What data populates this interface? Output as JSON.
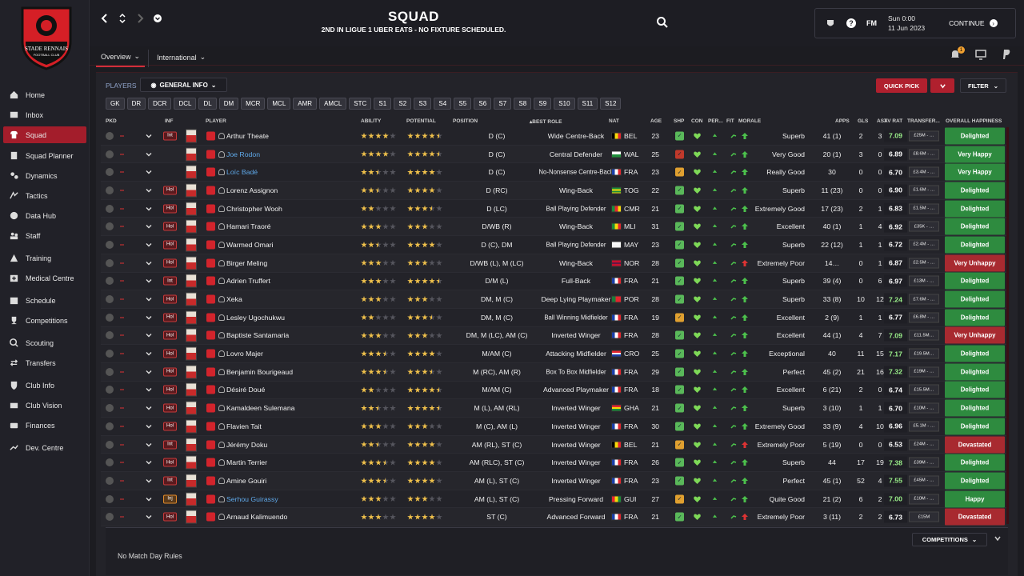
{
  "header": {
    "title": "SQUAD",
    "subtitle": "2ND IN LIGUE 1 UBER EATS - NO FIXTURE SCHEDULED.",
    "brand": "FM",
    "day_time": "Sun 0:00",
    "date": "11 Jun 2023",
    "continue_label": "CONTINUE",
    "notification_count": "1"
  },
  "club": {
    "crest_text": "STADE RENNAIS",
    "crest_sub": "FOOTBALL CLUB"
  },
  "sidebar": {
    "items": [
      {
        "label": "Home",
        "icon": "home-icon"
      },
      {
        "label": "Inbox",
        "icon": "inbox-icon"
      },
      {
        "label": "Squad",
        "icon": "shirt-icon",
        "active": true
      },
      {
        "label": "Squad Planner",
        "icon": "planner-icon"
      },
      {
        "label": "Dynamics",
        "icon": "dynamics-icon"
      },
      {
        "label": "Tactics",
        "icon": "tactics-icon"
      },
      {
        "label": "Data Hub",
        "icon": "data-hub-icon"
      },
      {
        "label": "Staff",
        "icon": "staff-icon"
      },
      {
        "label": "Training",
        "icon": "training-icon"
      },
      {
        "label": "Medical Centre",
        "icon": "medical-icon"
      },
      {
        "label": "Schedule",
        "icon": "calendar-icon"
      },
      {
        "label": "Competitions",
        "icon": "trophy-icon"
      },
      {
        "label": "Scouting",
        "icon": "search-icon"
      },
      {
        "label": "Transfers",
        "icon": "transfers-icon"
      },
      {
        "label": "Club Info",
        "icon": "shield-icon"
      },
      {
        "label": "Club Vision",
        "icon": "vision-icon"
      },
      {
        "label": "Finances",
        "icon": "finances-icon"
      },
      {
        "label": "Dev. Centre",
        "icon": "dev-centre-icon"
      }
    ]
  },
  "tabs": [
    {
      "label": "Overview"
    },
    {
      "label": "International"
    }
  ],
  "toolbar": {
    "players_label": "PLAYERS",
    "view_label": "GENERAL INFO",
    "quick_pick": "QUICK PICK",
    "filter": "FILTER"
  },
  "position_filters": [
    "GK",
    "DR",
    "DCR",
    "DCL",
    "DL",
    "DM",
    "MCR",
    "MCL",
    "AMR",
    "AMCL",
    "STC",
    "S1",
    "S2",
    "S3",
    "S4",
    "S5",
    "S6",
    "S7",
    "S8",
    "S9",
    "S10",
    "S11",
    "S12"
  ],
  "columns": {
    "pkd": "PKD",
    "inf": "INF",
    "player": "PLAYER",
    "ability": "ABILITY",
    "potential": "POTENTIAL",
    "position": "POSITION",
    "best_role": "BEST ROLE",
    "nat": "NAT",
    "age": "AGE",
    "shp": "SHP",
    "con": "CON",
    "per": "PER...",
    "fit": "FIT",
    "morale": "MORALE",
    "apps": "APPS",
    "gls": "GLS",
    "ast": "AST",
    "av_rat": "AV RAT",
    "transfer": "TRANSFER...",
    "happiness": "OVERALL HAPPINESS"
  },
  "colors": {
    "accent": "#b0202e",
    "happy": "#2e8b3f",
    "unhappy": "#a82a30"
  },
  "players": [
    {
      "name": "Arthur Theate",
      "inf": "Int",
      "ability": 4,
      "potential": 4.5,
      "position": "D (C)",
      "role": "Wide Centre-Back",
      "nat": "BEL",
      "age": "23",
      "morale": "Superb",
      "apps": "41 (1)",
      "gls": "2",
      "ast": "3",
      "rating": "7.09",
      "transfer": "£25M - …",
      "happiness": "Delighted"
    },
    {
      "name": "Joe Rodon",
      "inf": "",
      "ability": 4,
      "potential": 4.5,
      "position": "D (C)",
      "role": "Central Defender",
      "nat": "WAL",
      "age": "25",
      "morale": "Very Good",
      "apps": "20 (1)",
      "gls": "3",
      "ast": "0",
      "rating": "6.89",
      "transfer": "£8.6M - …",
      "happiness": "Very Happy",
      "blue": true
    },
    {
      "name": "Loïc Badé",
      "inf": "",
      "ability": 2.5,
      "potential": 4,
      "position": "D (C)",
      "role": "No-Nonsense Centre-Back",
      "nat": "FRA",
      "age": "23",
      "morale": "Really Good",
      "apps": "30",
      "gls": "0",
      "ast": "0",
      "rating": "6.70",
      "transfer": "£3.4M - …",
      "happiness": "Very Happy",
      "blue": true
    },
    {
      "name": "Lorenz Assignon",
      "inf": "Hol",
      "ability": 2.5,
      "potential": 4,
      "position": "D (RC)",
      "role": "Wing-Back",
      "nat": "TOG",
      "age": "22",
      "morale": "Superb",
      "apps": "11 (23)",
      "gls": "0",
      "ast": "0",
      "rating": "6.90",
      "transfer": "£1.6M - …",
      "happiness": "Delighted"
    },
    {
      "name": "Christopher Wooh",
      "inf": "Hol",
      "ability": 2,
      "potential": 3.5,
      "position": "D (LC)",
      "role": "Ball Playing Defender",
      "nat": "CMR",
      "age": "21",
      "morale": "Extremely Good",
      "apps": "17 (23)",
      "gls": "2",
      "ast": "1",
      "rating": "6.83",
      "transfer": "£1.5M - …",
      "happiness": "Delighted"
    },
    {
      "name": "Hamari Traoré",
      "inf": "Hol",
      "ability": 3,
      "potential": 3,
      "position": "D/WB (R)",
      "role": "Wing-Back",
      "nat": "MLI",
      "age": "31",
      "morale": "Excellent",
      "apps": "40 (1)",
      "gls": "1",
      "ast": "4",
      "rating": "6.92",
      "transfer": "£35K - …",
      "happiness": "Delighted"
    },
    {
      "name": "Warmed Omari",
      "inf": "Hol",
      "ability": 2.5,
      "potential": 4,
      "position": "D (C), DM",
      "role": "Ball Playing Defender",
      "nat": "MAY",
      "age": "23",
      "morale": "Superb",
      "apps": "22 (12)",
      "gls": "1",
      "ast": "1",
      "rating": "6.72",
      "transfer": "£2.4M - …",
      "happiness": "Delighted"
    },
    {
      "name": "Birger Meling",
      "inf": "Hol",
      "ability": 3,
      "potential": 3,
      "position": "D/WB (L), M (LC)",
      "role": "Wing-Back",
      "nat": "NOR",
      "age": "28",
      "morale": "Extremely Poor",
      "apps": "14…",
      "gls": "0",
      "ast": "1",
      "rating": "6.87",
      "transfer": "£2.5M - …",
      "happiness": "Very Unhappy"
    },
    {
      "name": "Adrien Truffert",
      "inf": "Int",
      "ability": 3,
      "potential": 4.5,
      "position": "D/M (L)",
      "role": "Full-Back",
      "nat": "FRA",
      "age": "21",
      "morale": "Superb",
      "apps": "39 (4)",
      "gls": "0",
      "ast": "6",
      "rating": "6.97",
      "transfer": "£13M - …",
      "happiness": "Delighted"
    },
    {
      "name": "Xeka",
      "inf": "Hol",
      "ability": 3,
      "potential": 3,
      "position": "DM, M (C)",
      "role": "Deep Lying Playmaker",
      "nat": "POR",
      "age": "28",
      "morale": "Superb",
      "apps": "33 (8)",
      "gls": "10",
      "ast": "12",
      "rating": "7.24",
      "transfer": "£7.6M - …",
      "happiness": "Delighted"
    },
    {
      "name": "Lesley Ugochukwu",
      "inf": "Hol",
      "ability": 2,
      "potential": 3.5,
      "position": "DM, M (C)",
      "role": "Ball Winning Midfielder",
      "nat": "FRA",
      "age": "19",
      "morale": "Excellent",
      "apps": "2 (9)",
      "gls": "1",
      "ast": "1",
      "rating": "6.77",
      "transfer": "£6.8M - …",
      "happiness": "Delighted"
    },
    {
      "name": "Baptiste Santamaria",
      "inf": "Hol",
      "ability": 3,
      "potential": 3,
      "position": "DM, M (LC), AM (C)",
      "role": "Inverted Winger",
      "nat": "FRA",
      "age": "28",
      "morale": "Excellent",
      "apps": "44 (1)",
      "gls": "4",
      "ast": "7",
      "rating": "7.09",
      "transfer": "£11.5M…",
      "happiness": "Very Unhappy"
    },
    {
      "name": "Lovro Majer",
      "inf": "Hol",
      "ability": 3.5,
      "potential": 4,
      "position": "M/AM (C)",
      "role": "Attacking Midfielder",
      "nat": "CRO",
      "age": "25",
      "morale": "Exceptional",
      "apps": "40",
      "gls": "11",
      "ast": "15",
      "rating": "7.17",
      "transfer": "£19.5M…",
      "happiness": "Delighted"
    },
    {
      "name": "Benjamin Bourigeaud",
      "inf": "Hol",
      "ability": 3.5,
      "potential": 3.5,
      "position": "M (RC), AM (R)",
      "role": "Box To Box Midfielder",
      "nat": "FRA",
      "age": "29",
      "morale": "Perfect",
      "apps": "45 (2)",
      "gls": "21",
      "ast": "16",
      "rating": "7.32",
      "transfer": "£19M - …",
      "happiness": "Delighted"
    },
    {
      "name": "Désiré Doué",
      "inf": "Hol",
      "ability": 2,
      "potential": 4.5,
      "position": "M/AM (C)",
      "role": "Advanced Playmaker",
      "nat": "FRA",
      "age": "18",
      "morale": "Excellent",
      "apps": "6 (21)",
      "gls": "2",
      "ast": "0",
      "rating": "6.74",
      "transfer": "£15.5M…",
      "happiness": "Delighted"
    },
    {
      "name": "Kamaldeen Sulemana",
      "inf": "Hol",
      "ability": 2.5,
      "potential": 4.5,
      "position": "M (L), AM (RL)",
      "role": "Inverted Winger",
      "nat": "GHA",
      "age": "21",
      "morale": "Superb",
      "apps": "3 (10)",
      "gls": "1",
      "ast": "1",
      "rating": "6.70",
      "transfer": "£10M - …",
      "happiness": "Delighted"
    },
    {
      "name": "Flavien Tait",
      "inf": "Hol",
      "ability": 3,
      "potential": 3,
      "position": "M (C), AM (L)",
      "role": "Inverted Winger",
      "nat": "FRA",
      "age": "30",
      "morale": "Extremely Good",
      "apps": "33 (9)",
      "gls": "4",
      "ast": "10",
      "rating": "6.96",
      "transfer": "£5.1M - …",
      "happiness": "Delighted"
    },
    {
      "name": "Jérémy Doku",
      "inf": "Int",
      "ability": 2.5,
      "potential": 4,
      "position": "AM (RL), ST (C)",
      "role": "Inverted Winger",
      "nat": "BEL",
      "age": "21",
      "morale": "Extremely Poor",
      "apps": "5 (19)",
      "gls": "0",
      "ast": "0",
      "rating": "6.53",
      "transfer": "£24M - …",
      "happiness": "Devastated"
    },
    {
      "name": "Martin Terrier",
      "inf": "Hol",
      "ability": 3.5,
      "potential": 4,
      "position": "AM (RLC), ST (C)",
      "role": "Inverted Winger",
      "nat": "FRA",
      "age": "26",
      "morale": "Superb",
      "apps": "44",
      "gls": "17",
      "ast": "19",
      "rating": "7.38",
      "transfer": "£39M - …",
      "happiness": "Delighted"
    },
    {
      "name": "Amine Gouiri",
      "inf": "Int",
      "ability": 3.5,
      "potential": 4,
      "position": "AM (L), ST (C)",
      "role": "Inverted Winger",
      "nat": "FRA",
      "age": "23",
      "morale": "Perfect",
      "apps": "45 (1)",
      "gls": "52",
      "ast": "4",
      "rating": "7.55",
      "transfer": "£45M - …",
      "happiness": "Delighted"
    },
    {
      "name": "Serhou Guirassy",
      "inf": "Inj",
      "ability": 3,
      "potential": 3,
      "position": "AM (L), ST (C)",
      "role": "Pressing Forward",
      "nat": "GUI",
      "age": "27",
      "morale": "Quite Good",
      "apps": "21 (2)",
      "gls": "6",
      "ast": "2",
      "rating": "7.00",
      "transfer": "£10M - …",
      "happiness": "Happy",
      "blue": true
    },
    {
      "name": "Arnaud Kalimuendo",
      "inf": "Hol",
      "ability": 3,
      "potential": 4,
      "position": "ST (C)",
      "role": "Advanced Forward",
      "nat": "FRA",
      "age": "21",
      "morale": "Extremely Poor",
      "apps": "3 (11)",
      "gls": "2",
      "ast": "2",
      "rating": "6.73",
      "transfer": "£15M",
      "happiness": "Devastated"
    }
  ],
  "footer": {
    "no_match": "No Match Day Rules",
    "competitions": "COMPETITIONS"
  }
}
